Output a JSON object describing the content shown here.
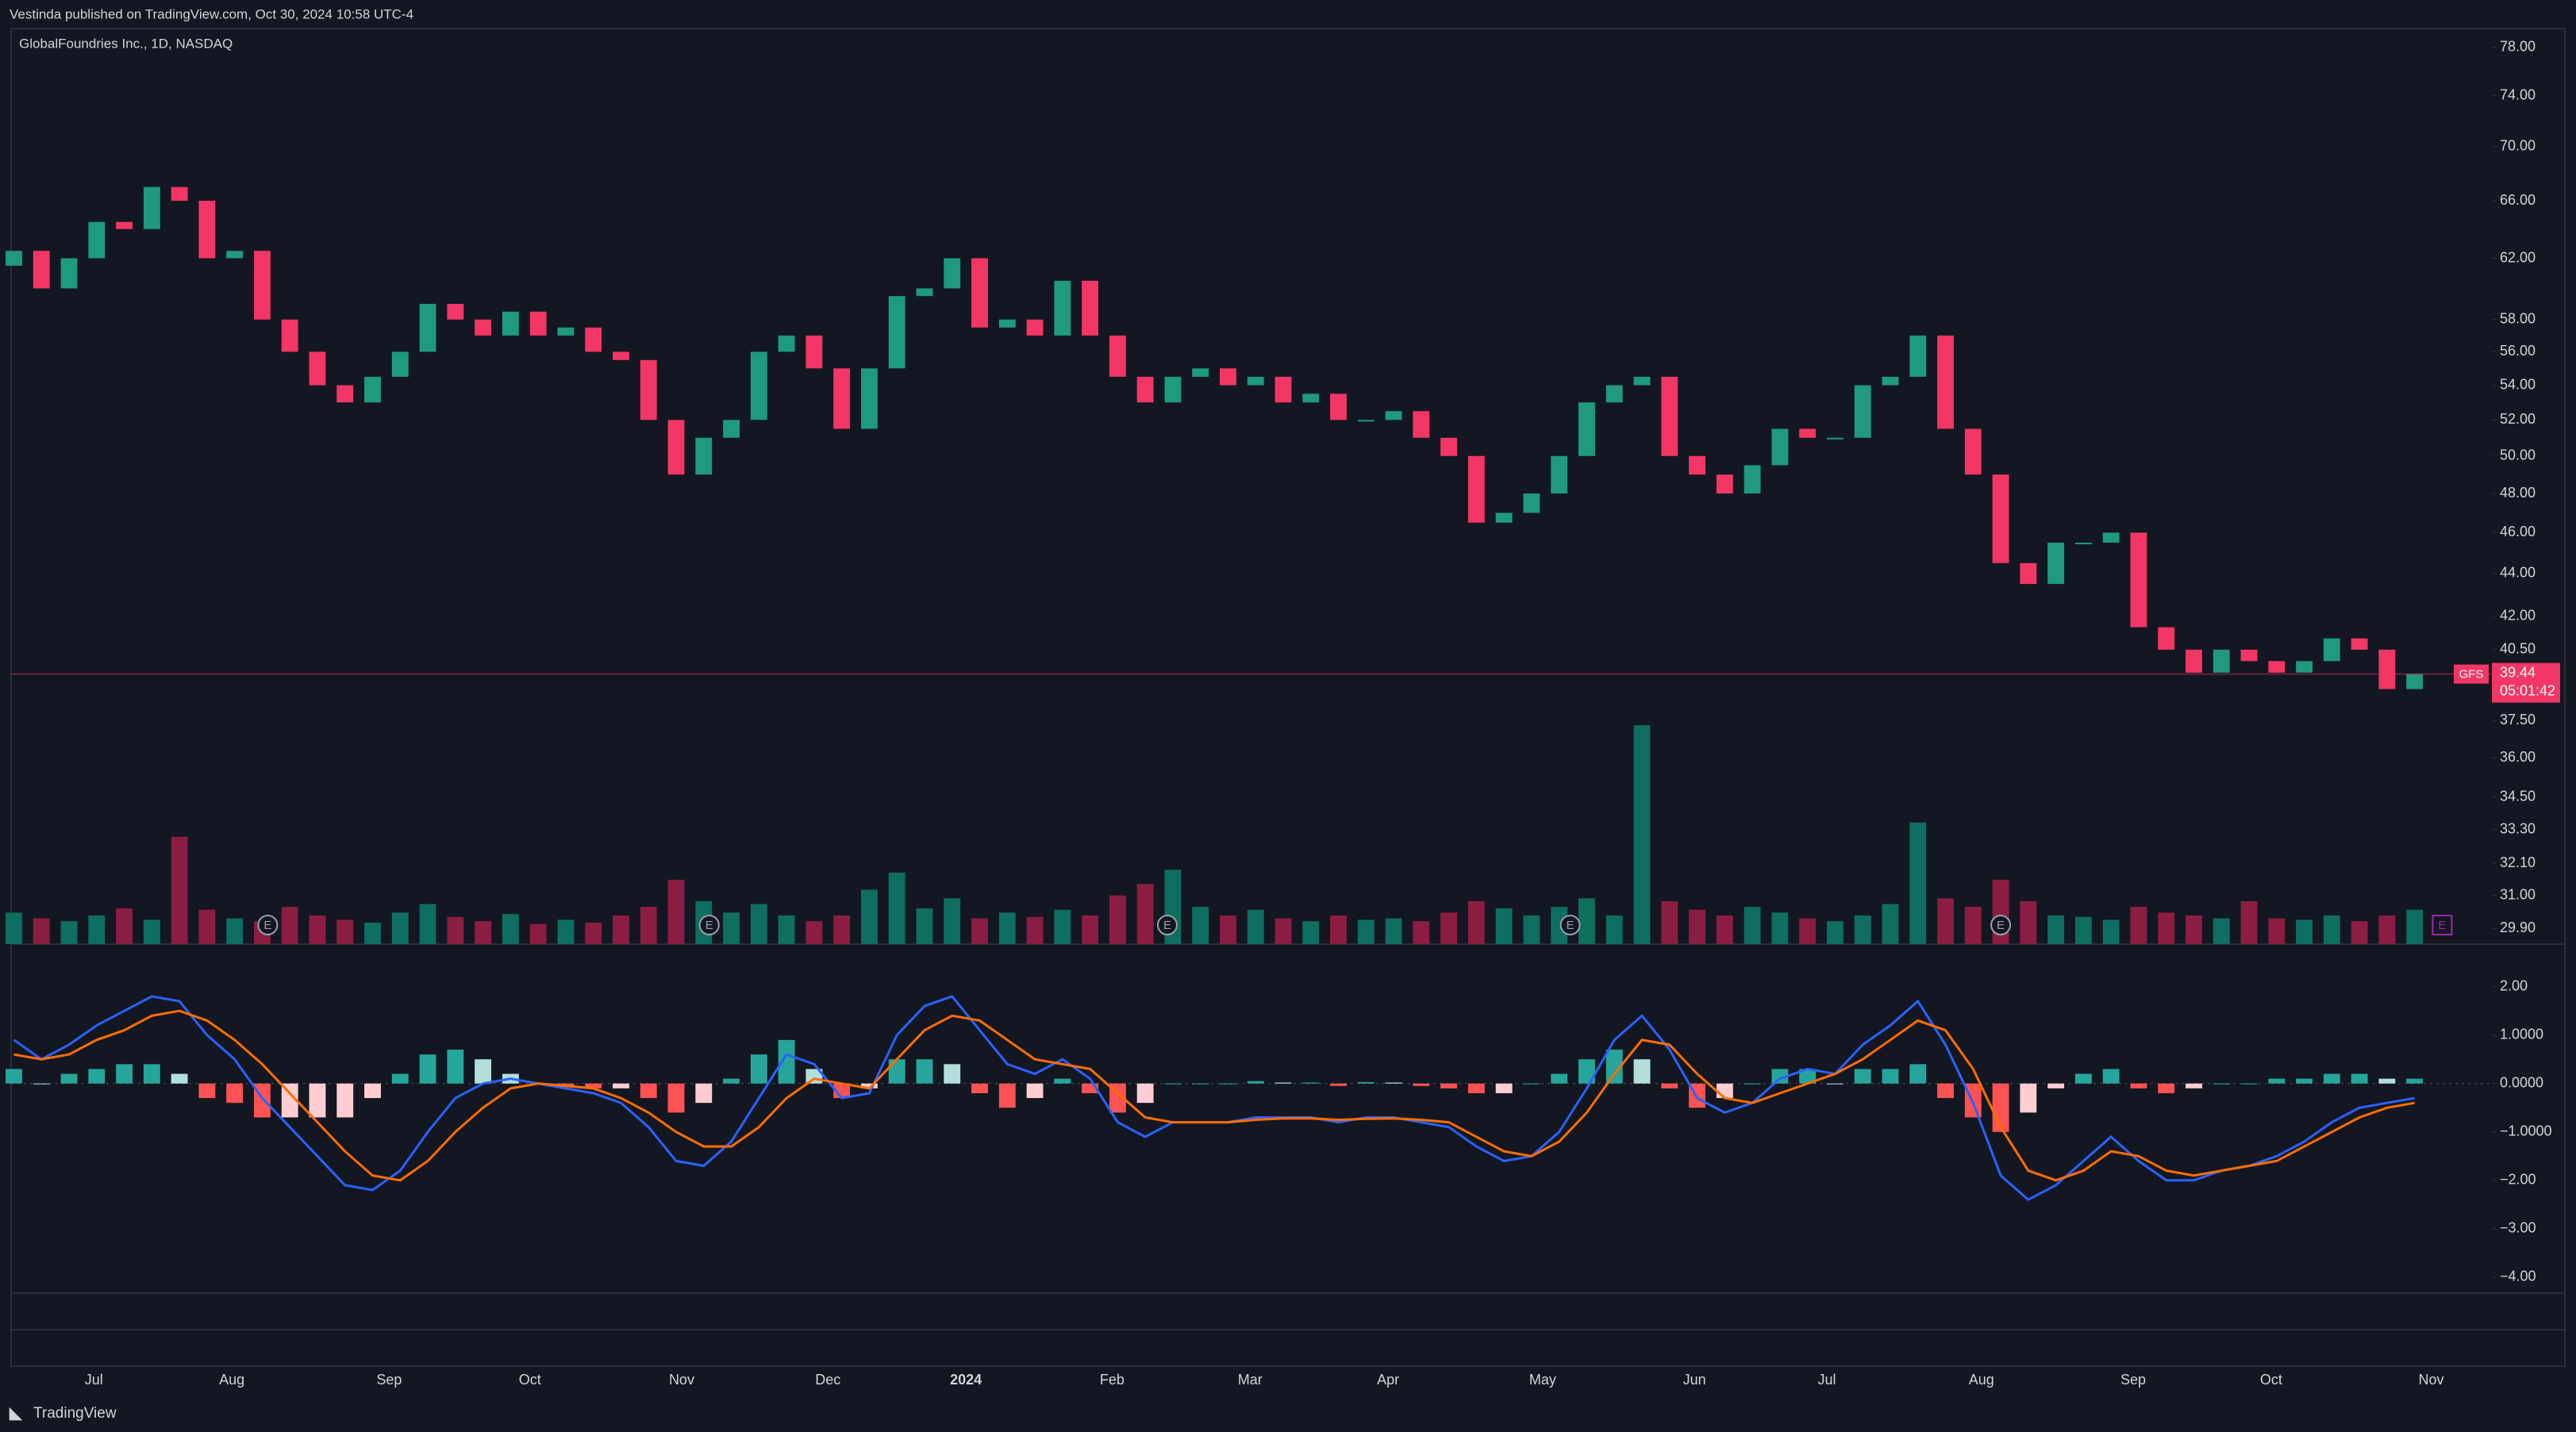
{
  "header": {
    "text": "Vestinda published on TradingView.com, Oct 30, 2024 10:58 UTC-4"
  },
  "footer": {
    "brand": "TradingView"
  },
  "chart_data": [
    {
      "type": "candlestick",
      "title": "GlobalFoundries Inc., 1D, NASDAQ",
      "log": true,
      "first_open": 61.5,
      "close": [
        62.5,
        60,
        62,
        64.5,
        64,
        67,
        66,
        62,
        62.5,
        58,
        56,
        54,
        53,
        54.5,
        56,
        59,
        58,
        57,
        58.5,
        57,
        57.5,
        56,
        55.5,
        52,
        49,
        51,
        52,
        56,
        57,
        55,
        51.5,
        55,
        59.5,
        60,
        62,
        57.5,
        58,
        57,
        60.5,
        57,
        54.5,
        53,
        54.5,
        55,
        54,
        54.5,
        53,
        53.5,
        52,
        52,
        52.5,
        51,
        50,
        46.5,
        47,
        48,
        50,
        53,
        54,
        54.5,
        50,
        49,
        48,
        49.5,
        51.5,
        51,
        51,
        54,
        54.5,
        57,
        51.5,
        49,
        44.5,
        43.5,
        45.5,
        45.5,
        46,
        41.5,
        40.5,
        39.5,
        40.5,
        40,
        39.5,
        40,
        41,
        40.5,
        38.8,
        39.44
      ],
      "up_color": "#1f9a7e",
      "down_color": "#f23665",
      "volume": {
        "values": [
          2.2,
          1.8,
          1.6,
          2.0,
          2.5,
          1.7,
          7.5,
          2.4,
          1.8,
          1.6,
          2.6,
          2.0,
          1.7,
          1.5,
          2.2,
          2.8,
          1.9,
          1.6,
          2.1,
          1.4,
          1.7,
          1.5,
          2.0,
          2.6,
          4.5,
          3.0,
          2.2,
          2.8,
          2.0,
          1.6,
          2.0,
          3.8,
          5.0,
          2.5,
          3.2,
          1.8,
          2.2,
          1.9,
          2.4,
          2.0,
          3.4,
          4.2,
          5.2,
          2.6,
          2.0,
          2.4,
          1.8,
          1.6,
          2.0,
          1.7,
          1.8,
          1.6,
          2.2,
          3.0,
          2.5,
          2.0,
          2.6,
          3.2,
          2.0,
          15.3,
          3.0,
          2.4,
          2.0,
          2.6,
          2.2,
          1.8,
          1.6,
          2.0,
          2.8,
          8.5,
          3.2,
          2.6,
          4.5,
          3.0,
          2.0,
          1.9,
          1.7,
          2.6,
          2.2,
          2.0,
          1.8,
          3.0,
          1.8,
          1.7,
          2.0,
          1.6,
          2.0,
          2.4
        ],
        "vlim": [
          0,
          64
        ],
        "up_color": "#0e6e60",
        "down_color": "#8c1d42"
      },
      "ylim": [
        29.4,
        79.6
      ],
      "yticks": [
        {
          "value": 78,
          "label": "78.00"
        },
        {
          "value": 74,
          "label": "74.00"
        },
        {
          "value": 70,
          "label": "70.00"
        },
        {
          "value": 66,
          "label": "66.00"
        },
        {
          "value": 62,
          "label": "62.00"
        },
        {
          "value": 58,
          "label": "58.00"
        },
        {
          "value": 56,
          "label": "56.00"
        },
        {
          "value": 54,
          "label": "54.00"
        },
        {
          "value": 52,
          "label": "52.00"
        },
        {
          "value": 50,
          "label": "50.00"
        },
        {
          "value": 48,
          "label": "48.00"
        },
        {
          "value": 46,
          "label": "46.00"
        },
        {
          "value": 44,
          "label": "44.00"
        },
        {
          "value": 42,
          "label": "42.00"
        },
        {
          "value": 40.5,
          "label": "40.50"
        },
        {
          "value": 37.5,
          "label": "37.50"
        },
        {
          "value": 36,
          "label": "36.00"
        },
        {
          "value": 34.5,
          "label": "34.50"
        },
        {
          "value": 33.3,
          "label": "33.30"
        },
        {
          "value": 32.1,
          "label": "32.10"
        },
        {
          "value": 31,
          "label": "31.00"
        },
        {
          "value": 29.9,
          "label": "29.90"
        }
      ],
      "last_price": {
        "symbol": "GFS",
        "value": 39.44,
        "countdown": "05:01:42",
        "color": "#f23665"
      },
      "events": [
        {
          "x": 9.2,
          "label": "E",
          "shape": "circle",
          "color": "#9aa0ab"
        },
        {
          "x": 25.2,
          "label": "E",
          "shape": "circle",
          "color": "#9aa0ab"
        },
        {
          "x": 41.8,
          "label": "E",
          "shape": "circle",
          "color": "#9aa0ab"
        },
        {
          "x": 56.4,
          "label": "E",
          "shape": "circle",
          "color": "#9aa0ab"
        },
        {
          "x": 72.0,
          "label": "E",
          "shape": "circle",
          "color": "#9aa0ab"
        },
        {
          "x": 88.0,
          "label": "E",
          "shape": "square",
          "color": "#9c27b0"
        }
      ],
      "xlim": [
        -0.1,
        89.8
      ],
      "xticks": [
        {
          "value": 2.9,
          "label": "Jul"
        },
        {
          "value": 7.9,
          "label": "Aug"
        },
        {
          "value": 13.6,
          "label": "Sep"
        },
        {
          "value": 18.7,
          "label": "Oct"
        },
        {
          "value": 24.2,
          "label": "Nov"
        },
        {
          "value": 29.5,
          "label": "Dec"
        },
        {
          "value": 34.5,
          "label": "2024",
          "bold": true
        },
        {
          "value": 39.8,
          "label": "Feb"
        },
        {
          "value": 44.8,
          "label": "Mar"
        },
        {
          "value": 49.8,
          "label": "Apr"
        },
        {
          "value": 55.4,
          "label": "May"
        },
        {
          "value": 60.9,
          "label": "Jun"
        },
        {
          "value": 65.7,
          "label": "Jul"
        },
        {
          "value": 71.3,
          "label": "Aug"
        },
        {
          "value": 76.8,
          "label": "Sep"
        },
        {
          "value": 81.8,
          "label": "Oct"
        },
        {
          "value": 87.6,
          "label": "Nov"
        }
      ]
    },
    {
      "type": "macd",
      "baseline": 0,
      "macd": {
        "color": "#2962ff",
        "values": [
          0.9,
          0.5,
          0.8,
          1.2,
          1.5,
          1.8,
          1.7,
          1.0,
          0.5,
          -0.3,
          -0.9,
          -1.5,
          -2.1,
          -2.2,
          -1.8,
          -1.0,
          -0.3,
          0.0,
          0.1,
          0.0,
          -0.1,
          -0.2,
          -0.4,
          -0.9,
          -1.6,
          -1.7,
          -1.2,
          -0.3,
          0.6,
          0.4,
          -0.3,
          -0.2,
          1.0,
          1.6,
          1.8,
          1.1,
          0.4,
          0.2,
          0.5,
          0.1,
          -0.8,
          -1.1,
          -0.8,
          -0.8,
          -0.8,
          -0.7,
          -0.7,
          -0.7,
          -0.8,
          -0.7,
          -0.7,
          -0.8,
          -0.9,
          -1.3,
          -1.6,
          -1.5,
          -1.0,
          -0.1,
          0.9,
          1.4,
          0.7,
          -0.3,
          -0.6,
          -0.4,
          0.1,
          0.3,
          0.2,
          0.8,
          1.2,
          1.7,
          0.8,
          -0.4,
          -1.9,
          -2.4,
          -2.1,
          -1.6,
          -1.1,
          -1.6,
          -2.0,
          -2.0,
          -1.8,
          -1.7,
          -1.5,
          -1.2,
          -0.8,
          -0.5,
          -0.4,
          -0.3
        ]
      },
      "signal": {
        "color": "#ff6d00",
        "values": [
          0.6,
          0.5,
          0.6,
          0.9,
          1.1,
          1.4,
          1.5,
          1.3,
          0.9,
          0.4,
          -0.2,
          -0.8,
          -1.4,
          -1.9,
          -2.0,
          -1.6,
          -1.0,
          -0.5,
          -0.1,
          0.0,
          -0.05,
          -0.1,
          -0.3,
          -0.6,
          -1.0,
          -1.3,
          -1.3,
          -0.9,
          -0.3,
          0.1,
          0.0,
          -0.1,
          0.5,
          1.1,
          1.4,
          1.3,
          0.9,
          0.5,
          0.4,
          0.3,
          -0.2,
          -0.7,
          -0.8,
          -0.8,
          -0.8,
          -0.75,
          -0.72,
          -0.72,
          -0.75,
          -0.73,
          -0.72,
          -0.75,
          -0.8,
          -1.1,
          -1.4,
          -1.5,
          -1.2,
          -0.6,
          0.2,
          0.9,
          0.8,
          0.2,
          -0.3,
          -0.4,
          -0.2,
          0.0,
          0.2,
          0.5,
          0.9,
          1.3,
          1.1,
          0.3,
          -0.9,
          -1.8,
          -2.0,
          -1.8,
          -1.4,
          -1.5,
          -1.8,
          -1.9,
          -1.8,
          -1.7,
          -1.6,
          -1.3,
          -1.0,
          -0.7,
          -0.5,
          -0.4
        ]
      },
      "histogram": {
        "values": [
          0.3,
          0.0,
          0.2,
          0.3,
          0.4,
          0.4,
          0.2,
          -0.3,
          -0.4,
          -0.7,
          -0.7,
          -0.7,
          -0.7,
          -0.3,
          0.2,
          0.6,
          0.7,
          0.5,
          0.2,
          0.0,
          -0.05,
          -0.1,
          -0.1,
          -0.3,
          -0.6,
          -0.4,
          0.1,
          0.6,
          0.9,
          0.3,
          -0.3,
          -0.1,
          0.5,
          0.5,
          0.4,
          -0.2,
          -0.5,
          -0.3,
          0.1,
          -0.2,
          -0.6,
          -0.4,
          0.0,
          0.0,
          0.0,
          0.05,
          0.02,
          0.02,
          -0.05,
          0.03,
          0.02,
          -0.05,
          -0.1,
          -0.2,
          -0.2,
          0.0,
          0.2,
          0.5,
          0.7,
          0.5,
          -0.1,
          -0.5,
          -0.3,
          0.0,
          0.3,
          0.3,
          0.0,
          0.3,
          0.3,
          0.4,
          -0.3,
          -0.7,
          -1.0,
          -0.6,
          -0.1,
          0.2,
          0.3,
          -0.1,
          -0.2,
          -0.1,
          0.0,
          0.0,
          0.1,
          0.1,
          0.2,
          0.2,
          0.1,
          0.1
        ],
        "colors": {
          "pos_rising": "#26a69a",
          "pos_falling": "#b2dfdb",
          "neg_falling": "#ff5252",
          "neg_rising": "#ffcdd2"
        }
      },
      "ylim": [
        -4.33,
        2.88
      ],
      "yticks": [
        {
          "value": 2,
          "label": "2.00"
        },
        {
          "value": 1,
          "label": "1.0000"
        },
        {
          "value": 0,
          "label": "0.0000"
        },
        {
          "value": -1,
          "label": "−1.0000"
        },
        {
          "value": -2,
          "label": "−2.00"
        },
        {
          "value": -3,
          "label": "−3.00"
        },
        {
          "value": -4,
          "label": "−4.00"
        }
      ]
    }
  ]
}
